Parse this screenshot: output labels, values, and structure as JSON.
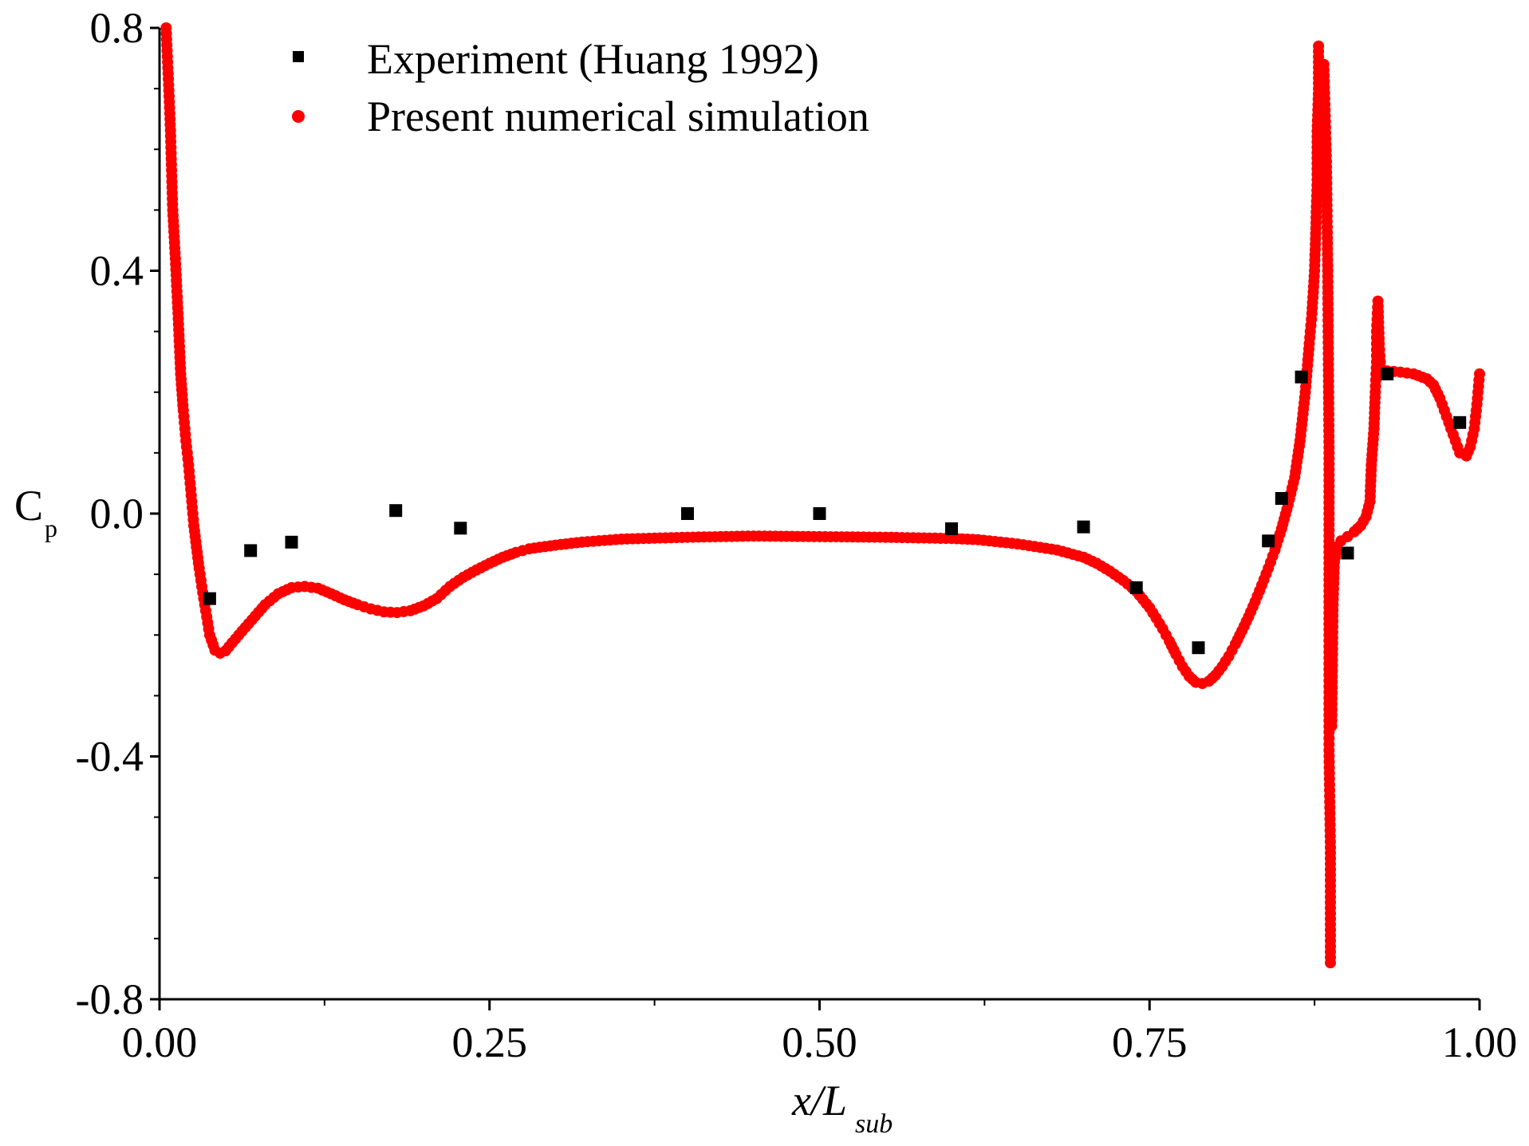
{
  "chart_data": {
    "type": "scatter",
    "title": "",
    "xlabel": {
      "main": "x/L",
      "subscript": "sub"
    },
    "ylabel": {
      "main": "C",
      "subscript": "p"
    },
    "xlim": [
      0.0,
      1.0
    ],
    "ylim": [
      -0.8,
      0.8
    ],
    "x_ticks": [
      0.0,
      0.25,
      0.5,
      0.75,
      1.0
    ],
    "x_tick_labels": [
      "0.00",
      "0.25",
      "0.50",
      "0.75",
      "1.00"
    ],
    "y_ticks": [
      -0.8,
      -0.4,
      0.0,
      0.4,
      0.8
    ],
    "y_tick_labels": [
      "-0.8",
      "-0.4",
      "0.0",
      "0.4",
      "0.8"
    ],
    "grid": false,
    "legend_position": "top-left",
    "series": [
      {
        "name": "Experiment (Huang 1992)",
        "marker": "square",
        "color": "#000000",
        "points": [
          [
            0.038,
            -0.14
          ],
          [
            0.069,
            -0.061
          ],
          [
            0.1,
            -0.047
          ],
          [
            0.179,
            0.005
          ],
          [
            0.228,
            -0.024
          ],
          [
            0.4,
            0.0
          ],
          [
            0.5,
            0.0
          ],
          [
            0.6,
            -0.025
          ],
          [
            0.7,
            -0.022
          ],
          [
            0.74,
            -0.122
          ],
          [
            0.787,
            -0.221
          ],
          [
            0.84,
            -0.045
          ],
          [
            0.85,
            0.025
          ],
          [
            0.865,
            0.225
          ],
          [
            0.9,
            -0.065
          ],
          [
            0.93,
            0.23
          ],
          [
            0.985,
            0.15
          ]
        ]
      },
      {
        "name": "Present numerical simulation",
        "marker": "circle",
        "color": "#ff0000",
        "curves": [
          [
            [
              0.005,
              0.8
            ],
            [
              0.008,
              0.65
            ],
            [
              0.01,
              0.5
            ],
            [
              0.012,
              0.42
            ],
            [
              0.014,
              0.33
            ],
            [
              0.016,
              0.23
            ],
            [
              0.018,
              0.17
            ],
            [
              0.02,
              0.12
            ],
            [
              0.022,
              0.08
            ],
            [
              0.024,
              0.03
            ],
            [
              0.026,
              -0.02
            ],
            [
              0.028,
              -0.055
            ],
            [
              0.03,
              -0.09
            ],
            [
              0.032,
              -0.12
            ],
            [
              0.035,
              -0.16
            ],
            [
              0.038,
              -0.2
            ],
            [
              0.042,
              -0.225
            ],
            [
              0.046,
              -0.23
            ],
            [
              0.05,
              -0.226
            ],
            [
              0.06,
              -0.2
            ],
            [
              0.07,
              -0.175
            ],
            [
              0.08,
              -0.15
            ],
            [
              0.09,
              -0.132
            ],
            [
              0.1,
              -0.122
            ],
            [
              0.11,
              -0.12
            ],
            [
              0.12,
              -0.123
            ],
            [
              0.13,
              -0.132
            ],
            [
              0.14,
              -0.142
            ],
            [
              0.15,
              -0.15
            ],
            [
              0.16,
              -0.157
            ],
            [
              0.17,
              -0.162
            ],
            [
              0.18,
              -0.163
            ],
            [
              0.19,
              -0.16
            ],
            [
              0.2,
              -0.152
            ],
            [
              0.21,
              -0.14
            ],
            [
              0.22,
              -0.12
            ],
            [
              0.23,
              -0.105
            ],
            [
              0.24,
              -0.093
            ],
            [
              0.25,
              -0.082
            ],
            [
              0.26,
              -0.072
            ],
            [
              0.27,
              -0.064
            ],
            [
              0.28,
              -0.058
            ],
            [
              0.3,
              -0.052
            ],
            [
              0.32,
              -0.047
            ],
            [
              0.35,
              -0.042
            ],
            [
              0.4,
              -0.039
            ],
            [
              0.45,
              -0.037
            ],
            [
              0.5,
              -0.038
            ],
            [
              0.55,
              -0.039
            ],
            [
              0.6,
              -0.041
            ],
            [
              0.62,
              -0.043
            ],
            [
              0.65,
              -0.05
            ],
            [
              0.68,
              -0.06
            ],
            [
              0.7,
              -0.072
            ],
            [
              0.71,
              -0.082
            ],
            [
              0.72,
              -0.095
            ],
            [
              0.73,
              -0.11
            ],
            [
              0.74,
              -0.128
            ],
            [
              0.75,
              -0.155
            ],
            [
              0.755,
              -0.172
            ],
            [
              0.76,
              -0.19
            ],
            [
              0.765,
              -0.21
            ],
            [
              0.77,
              -0.232
            ],
            [
              0.775,
              -0.252
            ],
            [
              0.78,
              -0.268
            ],
            [
              0.785,
              -0.278
            ],
            [
              0.79,
              -0.28
            ],
            [
              0.795,
              -0.276
            ],
            [
              0.8,
              -0.266
            ],
            [
              0.805,
              -0.252
            ],
            [
              0.81,
              -0.235
            ],
            [
              0.815,
              -0.215
            ],
            [
              0.82,
              -0.193
            ],
            [
              0.825,
              -0.17
            ],
            [
              0.83,
              -0.145
            ],
            [
              0.835,
              -0.118
            ],
            [
              0.84,
              -0.09
            ],
            [
              0.845,
              -0.06
            ],
            [
              0.85,
              -0.025
            ],
            [
              0.855,
              0.015
            ],
            [
              0.86,
              0.06
            ],
            [
              0.864,
              0.12
            ],
            [
              0.868,
              0.2
            ],
            [
              0.871,
              0.28
            ],
            [
              0.873,
              0.33
            ],
            [
              0.875,
              0.4
            ],
            [
              0.876,
              0.47
            ],
            [
              0.877,
              0.55
            ],
            [
              0.877,
              0.63
            ],
            [
              0.878,
              0.7
            ],
            [
              0.878,
              0.77
            ]
          ],
          [
            [
              0.882,
              0.74
            ],
            [
              0.884,
              0.58
            ],
            [
              0.885,
              0.4
            ],
            [
              0.886,
              0.1
            ],
            [
              0.886,
              -0.2
            ],
            [
              0.886,
              -0.36
            ],
            [
              0.886,
              -0.39
            ],
            [
              0.887,
              -0.55
            ],
            [
              0.887,
              -0.74
            ]
          ],
          [
            [
              0.888,
              -0.35
            ],
            [
              0.889,
              -0.15
            ],
            [
              0.89,
              -0.08
            ],
            [
              0.892,
              -0.055
            ],
            [
              0.895,
              -0.045
            ],
            [
              0.9,
              -0.038
            ],
            [
              0.905,
              -0.03
            ],
            [
              0.91,
              -0.02
            ],
            [
              0.914,
              -0.005
            ],
            [
              0.917,
              0.02
            ],
            [
              0.918,
              0.08
            ],
            [
              0.92,
              0.14
            ],
            [
              0.921,
              0.2
            ],
            [
              0.922,
              0.25
            ],
            [
              0.922,
              0.3
            ],
            [
              0.923,
              0.35
            ],
            [
              0.924,
              0.28
            ],
            [
              0.925,
              0.24
            ],
            [
              0.93,
              0.235
            ],
            [
              0.94,
              0.233
            ],
            [
              0.95,
              0.23
            ],
            [
              0.96,
              0.222
            ],
            [
              0.965,
              0.212
            ],
            [
              0.97,
              0.19
            ],
            [
              0.975,
              0.16
            ],
            [
              0.98,
              0.13
            ],
            [
              0.985,
              0.1
            ],
            [
              0.99,
              0.095
            ],
            [
              0.993,
              0.11
            ],
            [
              0.996,
              0.14
            ],
            [
              0.998,
              0.18
            ],
            [
              1.0,
              0.23
            ]
          ]
        ]
      }
    ]
  }
}
